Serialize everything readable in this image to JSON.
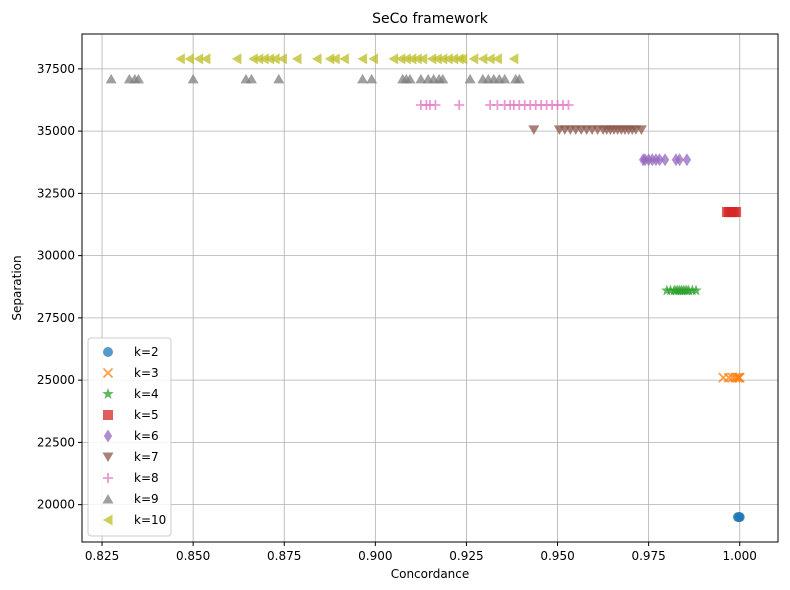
{
  "chart_data": {
    "type": "scatter",
    "title": "SeCo framework",
    "xlabel": "Concordance",
    "ylabel": "Separation",
    "xlim": [
      0.8195,
      1.0105
    ],
    "ylim": [
      18500,
      38900
    ],
    "xticks": [
      "0.825",
      "0.850",
      "0.875",
      "0.900",
      "0.925",
      "0.950",
      "0.975",
      "1.000"
    ],
    "yticks": [
      "20000",
      "22500",
      "25000",
      "27500",
      "30000",
      "32500",
      "35000",
      "37500"
    ],
    "grid": true,
    "legend_position": "lower-left",
    "series": [
      {
        "name": "k=2",
        "marker": "circle",
        "color": "#1f77b4",
        "points": [
          [
            0.9995,
            19500
          ],
          [
            0.9998,
            19500
          ],
          [
            1.0,
            19500
          ]
        ]
      },
      {
        "name": "k=3",
        "marker": "x",
        "color": "#ff7f0e",
        "points": [
          [
            0.9955,
            25100
          ],
          [
            0.997,
            25100
          ],
          [
            0.998,
            25100
          ],
          [
            0.9988,
            25100
          ],
          [
            0.9994,
            25100
          ],
          [
            0.9998,
            25100
          ],
          [
            1.0,
            25100
          ]
        ]
      },
      {
        "name": "k=4",
        "marker": "star",
        "color": "#2ca02c",
        "points": [
          [
            0.98,
            28600
          ],
          [
            0.981,
            28600
          ],
          [
            0.982,
            28600
          ],
          [
            0.9825,
            28600
          ],
          [
            0.983,
            28600
          ],
          [
            0.9835,
            28600
          ],
          [
            0.984,
            28600
          ],
          [
            0.9845,
            28600
          ],
          [
            0.985,
            28600
          ],
          [
            0.9855,
            28600
          ],
          [
            0.986,
            28600
          ],
          [
            0.987,
            28600
          ],
          [
            0.988,
            28600
          ]
        ]
      },
      {
        "name": "k=5",
        "marker": "square",
        "color": "#d62728",
        "points": [
          [
            0.9965,
            31750
          ],
          [
            0.997,
            31750
          ],
          [
            0.9975,
            31750
          ],
          [
            0.998,
            31750
          ],
          [
            0.9985,
            31750
          ],
          [
            0.999,
            31750
          ]
        ]
      },
      {
        "name": "k=6",
        "marker": "diamond",
        "color": "#9467bd",
        "points": [
          [
            0.9735,
            33850
          ],
          [
            0.974,
            33850
          ],
          [
            0.975,
            33850
          ],
          [
            0.976,
            33850
          ],
          [
            0.977,
            33850
          ],
          [
            0.978,
            33850
          ],
          [
            0.9795,
            33850
          ],
          [
            0.9825,
            33850
          ],
          [
            0.9835,
            33850
          ],
          [
            0.9855,
            33850
          ]
        ]
      },
      {
        "name": "k=7",
        "marker": "triangle-down",
        "color": "#8c564b",
        "points": [
          [
            0.9435,
            35050
          ],
          [
            0.9505,
            35050
          ],
          [
            0.952,
            35050
          ],
          [
            0.9535,
            35050
          ],
          [
            0.955,
            35050
          ],
          [
            0.9565,
            35050
          ],
          [
            0.958,
            35050
          ],
          [
            0.9595,
            35050
          ],
          [
            0.961,
            35050
          ],
          [
            0.9625,
            35050
          ],
          [
            0.9635,
            35050
          ],
          [
            0.9645,
            35050
          ],
          [
            0.9655,
            35050
          ],
          [
            0.9665,
            35050
          ],
          [
            0.9675,
            35050
          ],
          [
            0.9685,
            35050
          ],
          [
            0.9695,
            35050
          ],
          [
            0.9705,
            35050
          ],
          [
            0.9715,
            35050
          ],
          [
            0.973,
            35050
          ]
        ]
      },
      {
        "name": "k=8",
        "marker": "plus",
        "color": "#e377c2",
        "points": [
          [
            0.9125,
            36050
          ],
          [
            0.914,
            36050
          ],
          [
            0.915,
            36050
          ],
          [
            0.9165,
            36050
          ],
          [
            0.923,
            36050
          ],
          [
            0.9315,
            36050
          ],
          [
            0.9335,
            36050
          ],
          [
            0.9355,
            36050
          ],
          [
            0.937,
            36050
          ],
          [
            0.938,
            36050
          ],
          [
            0.9395,
            36050
          ],
          [
            0.941,
            36050
          ],
          [
            0.9425,
            36050
          ],
          [
            0.944,
            36050
          ],
          [
            0.9455,
            36050
          ],
          [
            0.947,
            36050
          ],
          [
            0.9485,
            36050
          ],
          [
            0.95,
            36050
          ],
          [
            0.9515,
            36050
          ],
          [
            0.953,
            36050
          ]
        ]
      },
      {
        "name": "k=9",
        "marker": "triangle-up",
        "color": "#7f7f7f",
        "points": [
          [
            0.8275,
            37100
          ],
          [
            0.8325,
            37100
          ],
          [
            0.834,
            37100
          ],
          [
            0.835,
            37100
          ],
          [
            0.85,
            37100
          ],
          [
            0.8645,
            37100
          ],
          [
            0.866,
            37100
          ],
          [
            0.8735,
            37100
          ],
          [
            0.8965,
            37100
          ],
          [
            0.899,
            37100
          ],
          [
            0.9075,
            37100
          ],
          [
            0.9085,
            37100
          ],
          [
            0.9095,
            37100
          ],
          [
            0.9125,
            37100
          ],
          [
            0.9145,
            37100
          ],
          [
            0.916,
            37100
          ],
          [
            0.9175,
            37100
          ],
          [
            0.9185,
            37100
          ],
          [
            0.926,
            37100
          ],
          [
            0.9295,
            37100
          ],
          [
            0.931,
            37100
          ],
          [
            0.9325,
            37100
          ],
          [
            0.934,
            37100
          ],
          [
            0.9355,
            37100
          ],
          [
            0.9385,
            37100
          ],
          [
            0.9395,
            37100
          ]
        ]
      },
      {
        "name": "k=10",
        "marker": "triangle-left",
        "color": "#bcbd22",
        "points": [
          [
            0.8465,
            37900
          ],
          [
            0.849,
            37900
          ],
          [
            0.8515,
            37900
          ],
          [
            0.8535,
            37900
          ],
          [
            0.862,
            37900
          ],
          [
            0.8665,
            37900
          ],
          [
            0.868,
            37900
          ],
          [
            0.8695,
            37900
          ],
          [
            0.871,
            37900
          ],
          [
            0.8725,
            37900
          ],
          [
            0.8745,
            37900
          ],
          [
            0.8785,
            37900
          ],
          [
            0.884,
            37900
          ],
          [
            0.8875,
            37900
          ],
          [
            0.889,
            37900
          ],
          [
            0.8915,
            37900
          ],
          [
            0.8965,
            37900
          ],
          [
            0.8995,
            37900
          ],
          [
            0.905,
            37900
          ],
          [
            0.907,
            37900
          ],
          [
            0.9085,
            37900
          ],
          [
            0.91,
            37900
          ],
          [
            0.9115,
            37900
          ],
          [
            0.913,
            37900
          ],
          [
            0.9155,
            37900
          ],
          [
            0.917,
            37900
          ],
          [
            0.9185,
            37900
          ],
          [
            0.92,
            37900
          ],
          [
            0.9215,
            37900
          ],
          [
            0.923,
            37900
          ],
          [
            0.924,
            37900
          ],
          [
            0.927,
            37900
          ],
          [
            0.9295,
            37900
          ],
          [
            0.9315,
            37900
          ],
          [
            0.9335,
            37900
          ],
          [
            0.938,
            37900
          ]
        ]
      }
    ]
  }
}
